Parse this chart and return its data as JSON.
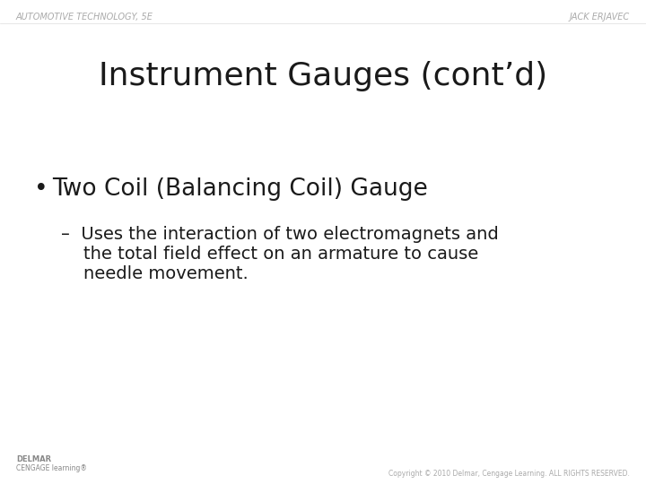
{
  "background_color": "#ffffff",
  "header_left": "AUTOMOTIVE TECHNOLOGY, 5E",
  "header_right": "JACK ERJAVEC",
  "header_color": "#aaaaaa",
  "header_fontsize": 7,
  "title": "Instrument Gauges (cont’d)",
  "title_fontsize": 26,
  "title_color": "#1a1a1a",
  "bullet_text": "Two Coil (Balancing Coil) Gauge",
  "bullet_fontsize": 19,
  "bullet_color": "#1a1a1a",
  "sub_bullet_lines": [
    "–  Uses the interaction of two electromagnets and",
    "    the total field effect on an armature to cause",
    "    needle movement."
  ],
  "sub_bullet_fontsize": 14,
  "sub_bullet_color": "#1a1a1a",
  "footer_left_line1": "DELMAR",
  "footer_left_line2": "CENGAGE learning®",
  "footer_right": "Copyright © 2010 Delmar, Cengage Learning. ALL RIGHTS RESERVED.",
  "footer_fontsize": 5.5,
  "footer_color": "#aaaaaa",
  "footer_left_color": "#888888"
}
